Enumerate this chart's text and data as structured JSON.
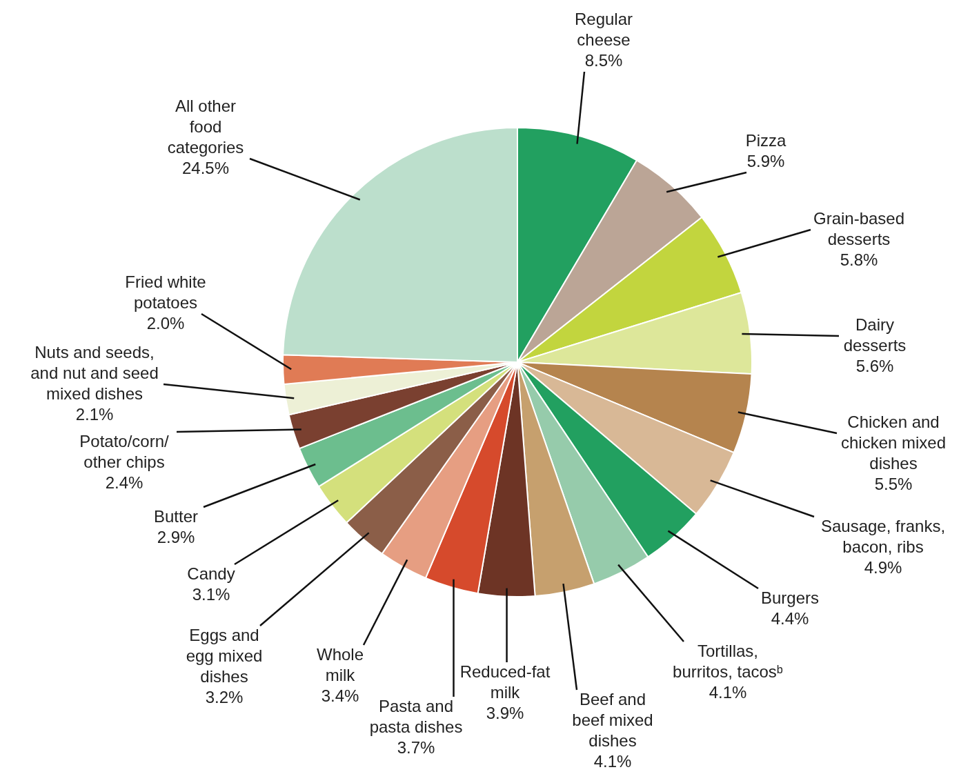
{
  "chart_data": {
    "type": "pie",
    "categories": [
      "Regular cheese",
      "Pizza",
      "Grain-based desserts",
      "Dairy desserts",
      "Chicken and chicken mixed dishes",
      "Sausage, franks, bacon, ribs",
      "Burgers",
      "Tortillas, burritos, tacosᵇ",
      "Beef and beef mixed dishes",
      "Reduced-fat milk",
      "Pasta and pasta dishes",
      "Whole milk",
      "Eggs and egg mixed dishes",
      "Candy",
      "Butter",
      "Potato/corn/ other chips",
      "Nuts and seeds, and nut and seed mixed dishes",
      "Fried white potatoes",
      "All other food categories"
    ],
    "values": [
      8.5,
      5.9,
      5.8,
      5.6,
      5.5,
      4.9,
      4.4,
      4.1,
      4.1,
      3.9,
      3.7,
      3.4,
      3.2,
      3.1,
      2.9,
      2.4,
      2.1,
      2.0,
      24.5
    ],
    "value_labels": [
      "8.5%",
      "5.9%",
      "5.8%",
      "5.6%",
      "5.5%",
      "4.9%",
      "4.4%",
      "4.1%",
      "4.1%",
      "3.9%",
      "3.7%",
      "3.4%",
      "3.2%",
      "3.1%",
      "2.9%",
      "2.4%",
      "2.1%",
      "2.0%",
      "24.5%"
    ],
    "colors": [
      "#22a060",
      "#bba596",
      "#c2d53e",
      "#dde79a",
      "#b5844e",
      "#d8b896",
      "#22a060",
      "#96cbab",
      "#c6a06e",
      "#6d3425",
      "#d64a2c",
      "#e69e82",
      "#8b5e48",
      "#d4e07c",
      "#6cbe8e",
      "#7a4030",
      "#edf0d6",
      "#e07b55",
      "#bcdfcc"
    ]
  }
}
